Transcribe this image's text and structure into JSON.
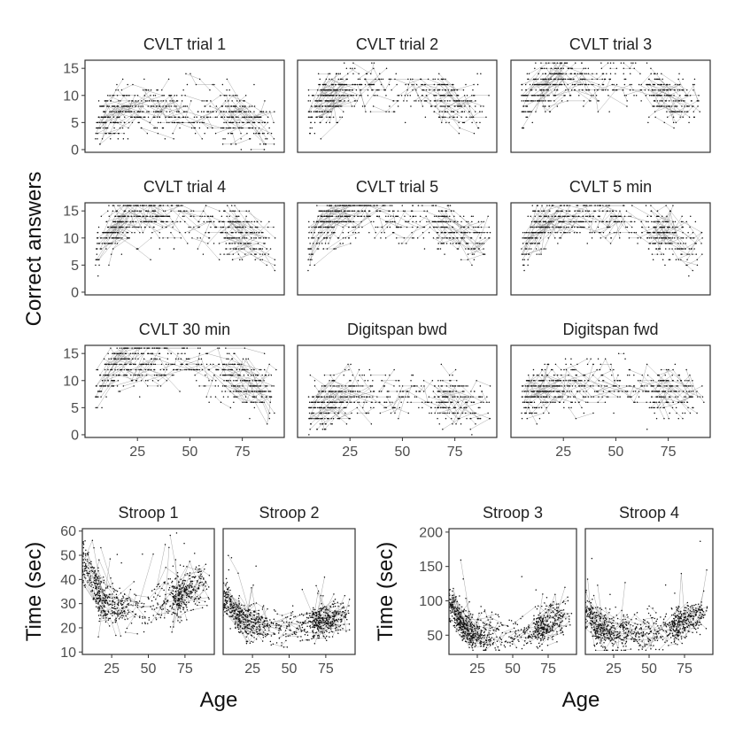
{
  "chart_data": {
    "type": "scatter",
    "description_style": "longitudinal spaghetti scatter: points per observation, thin grey lines connect repeated measures of the same participant",
    "colors": {
      "points": "#111111",
      "lines": "#8c8c8c",
      "frame": "#333333",
      "text": "#222222",
      "tick_text": "#4d4d4d"
    },
    "groups": [
      {
        "id": "memory",
        "ylabel": "Correct answers",
        "xlabel": "",
        "xlim": [
          0,
          95
        ],
        "ylim": [
          -0.5,
          16.5
        ],
        "xticks": [
          25,
          50,
          75
        ],
        "yticks": [
          0,
          5,
          10,
          15
        ],
        "panels": [
          {
            "title": "CVLT trial 1",
            "curve": [
              [
                5,
                4
              ],
              [
                10,
                6
              ],
              [
                20,
                7
              ],
              [
                30,
                7.5
              ],
              [
                40,
                7.5
              ],
              [
                55,
                7
              ],
              [
                70,
                6.5
              ],
              [
                80,
                5.5
              ],
              [
                85,
                5
              ]
            ]
          },
          {
            "title": "CVLT trial 2",
            "curve": [
              [
                5,
                6
              ],
              [
                10,
                9
              ],
              [
                20,
                11
              ],
              [
                30,
                11.5
              ],
              [
                40,
                11
              ],
              [
                55,
                10.5
              ],
              [
                70,
                9
              ],
              [
                80,
                8
              ],
              [
                85,
                7.5
              ]
            ]
          },
          {
            "title": "CVLT trial 3",
            "curve": [
              [
                5,
                7
              ],
              [
                10,
                10.5
              ],
              [
                20,
                12.5
              ],
              [
                30,
                13
              ],
              [
                40,
                12.5
              ],
              [
                55,
                12
              ],
              [
                70,
                10.5
              ],
              [
                80,
                9
              ],
              [
                85,
                8.5
              ]
            ]
          },
          {
            "title": "CVLT trial 4",
            "curve": [
              [
                5,
                7.5
              ],
              [
                10,
                11
              ],
              [
                20,
                13.5
              ],
              [
                30,
                14
              ],
              [
                40,
                13.5
              ],
              [
                55,
                13
              ],
              [
                70,
                11.5
              ],
              [
                80,
                10
              ],
              [
                85,
                9
              ]
            ]
          },
          {
            "title": "CVLT trial 5",
            "curve": [
              [
                5,
                8
              ],
              [
                10,
                12
              ],
              [
                20,
                14
              ],
              [
                30,
                14.5
              ],
              [
                40,
                14
              ],
              [
                55,
                13.5
              ],
              [
                70,
                12
              ],
              [
                80,
                10.5
              ],
              [
                85,
                9.5
              ]
            ]
          },
          {
            "title": "CVLT 5 min",
            "curve": [
              [
                5,
                7
              ],
              [
                10,
                11
              ],
              [
                20,
                13.5
              ],
              [
                30,
                14
              ],
              [
                40,
                13.5
              ],
              [
                55,
                13
              ],
              [
                70,
                11
              ],
              [
                80,
                9.5
              ],
              [
                85,
                8.5
              ]
            ]
          },
          {
            "title": "CVLT 30 min",
            "curve": [
              [
                5,
                7
              ],
              [
                10,
                11
              ],
              [
                20,
                13.5
              ],
              [
                30,
                14
              ],
              [
                40,
                13.5
              ],
              [
                55,
                13
              ],
              [
                70,
                11
              ],
              [
                80,
                9.5
              ],
              [
                85,
                8.5
              ]
            ]
          },
          {
            "title": "Digitspan bwd",
            "curve": [
              [
                5,
                4
              ],
              [
                10,
                5.5
              ],
              [
                20,
                7
              ],
              [
                30,
                7.5
              ],
              [
                40,
                7.5
              ],
              [
                55,
                7
              ],
              [
                70,
                6.5
              ],
              [
                80,
                6
              ],
              [
                85,
                5.5
              ]
            ]
          },
          {
            "title": "Digitspan fwd",
            "curve": [
              [
                5,
                6
              ],
              [
                10,
                7.5
              ],
              [
                20,
                8.5
              ],
              [
                30,
                9
              ],
              [
                40,
                9
              ],
              [
                55,
                8.5
              ],
              [
                70,
                8
              ],
              [
                80,
                7.5
              ],
              [
                85,
                7
              ]
            ]
          }
        ]
      },
      {
        "id": "stroop-a",
        "ylabel": "Time (sec)",
        "xlabel": "Age",
        "xlim": [
          5,
          95
        ],
        "ylim": [
          9,
          61
        ],
        "xticks": [
          25,
          50,
          75
        ],
        "yticks": [
          10,
          20,
          30,
          40,
          50,
          60
        ],
        "panels": [
          {
            "title": "Stroop 1",
            "curve": [
              [
                8,
                45
              ],
              [
                12,
                38
              ],
              [
                20,
                30
              ],
              [
                30,
                28
              ],
              [
                45,
                27
              ],
              [
                60,
                30
              ],
              [
                70,
                33
              ],
              [
                80,
                36
              ],
              [
                88,
                38
              ]
            ]
          },
          {
            "title": "Stroop 2",
            "curve": [
              [
                8,
                32
              ],
              [
                12,
                27
              ],
              [
                20,
                22
              ],
              [
                30,
                21
              ],
              [
                45,
                20
              ],
              [
                60,
                21
              ],
              [
                70,
                22
              ],
              [
                80,
                24
              ],
              [
                88,
                25
              ]
            ]
          }
        ]
      },
      {
        "id": "stroop-b",
        "ylabel": "Time (sec)",
        "xlabel": "Age",
        "xlim": [
          5,
          95
        ],
        "ylim": [
          22,
          205
        ],
        "xticks": [
          25,
          50,
          75
        ],
        "yticks": [
          50,
          100,
          150,
          200
        ],
        "panels": [
          {
            "title": "Stroop 3",
            "curve": [
              [
                8,
                90
              ],
              [
                12,
                70
              ],
              [
                20,
                52
              ],
              [
                30,
                48
              ],
              [
                45,
                48
              ],
              [
                60,
                55
              ],
              [
                70,
                62
              ],
              [
                80,
                70
              ],
              [
                88,
                78
              ]
            ]
          },
          {
            "title": "Stroop 4",
            "curve": [
              [
                8,
                80
              ],
              [
                12,
                65
              ],
              [
                20,
                55
              ],
              [
                30,
                52
              ],
              [
                45,
                52
              ],
              [
                60,
                58
              ],
              [
                70,
                65
              ],
              [
                80,
                75
              ],
              [
                88,
                85
              ]
            ]
          }
        ]
      }
    ]
  }
}
